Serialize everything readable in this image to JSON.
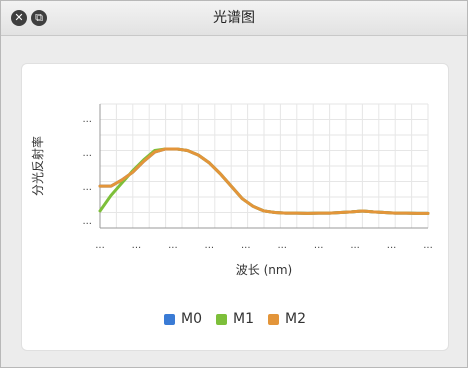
{
  "window": {
    "title": "光谱图",
    "buttons": {
      "close_icon": "close-icon",
      "window_icon": "window-icon"
    }
  },
  "chart_data": {
    "type": "line",
    "title": "",
    "xlabel": "波长 (nm)",
    "ylabel": "分光反射率",
    "x": [
      400,
      410,
      420,
      430,
      440,
      450,
      460,
      470,
      480,
      490,
      500,
      510,
      520,
      530,
      540,
      550,
      560,
      570,
      580,
      590,
      600,
      610,
      620,
      630,
      640,
      650,
      660,
      670,
      680,
      690,
      700
    ],
    "ylim": [
      0,
      4
    ],
    "x_tick_labels": [
      "...",
      "...",
      "...",
      "...",
      "...",
      "...",
      "...",
      "...",
      "...",
      "..."
    ],
    "y_tick_labels": [
      "...",
      "...",
      "...",
      "..."
    ],
    "grid": true,
    "legend_position": "bottom",
    "series": [
      {
        "name": "M0",
        "color": "#3a7bd5",
        "values": [
          1.35,
          1.35,
          1.55,
          1.8,
          2.15,
          2.45,
          2.55,
          2.55,
          2.5,
          2.35,
          2.1,
          1.75,
          1.35,
          0.95,
          0.7,
          0.55,
          0.5,
          0.48,
          0.48,
          0.47,
          0.48,
          0.48,
          0.5,
          0.52,
          0.55,
          0.52,
          0.5,
          0.48,
          0.48,
          0.47,
          0.47
        ]
      },
      {
        "name": "M1",
        "color": "#7dbf3a",
        "values": [
          0.55,
          1.05,
          1.45,
          1.85,
          2.2,
          2.5,
          2.55,
          2.55,
          2.5,
          2.35,
          2.1,
          1.75,
          1.35,
          0.95,
          0.7,
          0.55,
          0.5,
          0.48,
          0.48,
          0.47,
          0.48,
          0.48,
          0.5,
          0.52,
          0.55,
          0.52,
          0.5,
          0.48,
          0.48,
          0.47,
          0.47
        ]
      },
      {
        "name": "M2",
        "color": "#e3953a",
        "values": [
          1.35,
          1.35,
          1.55,
          1.8,
          2.15,
          2.45,
          2.55,
          2.55,
          2.5,
          2.35,
          2.1,
          1.75,
          1.35,
          0.95,
          0.7,
          0.55,
          0.5,
          0.48,
          0.48,
          0.47,
          0.48,
          0.48,
          0.5,
          0.52,
          0.55,
          0.52,
          0.5,
          0.48,
          0.48,
          0.47,
          0.47
        ]
      }
    ]
  }
}
